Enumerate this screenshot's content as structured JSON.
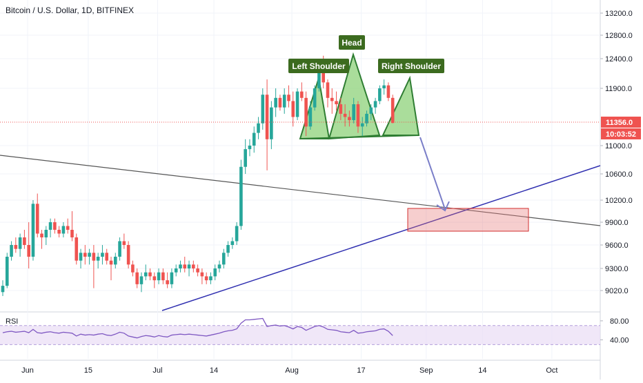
{
  "chart_data": {
    "type": "candlestick",
    "title": "Bitcoin / U.S. Dollar, 1D, BITFINEX",
    "price_axis": {
      "ticks": [
        "13200.0",
        "12800.0",
        "12400.0",
        "11900.0",
        "11000.0",
        "10600.0",
        "10200.0",
        "9900.0",
        "9600.0",
        "9300.0",
        "9020.0"
      ],
      "tick_values": [
        13200,
        12800,
        12400,
        11900,
        11000,
        10600,
        10200,
        9900,
        9600,
        9300,
        9020
      ]
    },
    "time_axis": {
      "ticks": [
        "Jun",
        "15",
        "Jul",
        "14",
        "Aug",
        "17",
        "Sep",
        "14",
        "Oct"
      ],
      "tick_day_index": [
        0,
        14,
        30,
        43,
        61,
        77,
        92,
        105,
        121
      ]
    },
    "last_price_label": "11356.0",
    "countdown_label": "10:03:52",
    "colors": {
      "up": "#26a69a",
      "down": "#ef5350",
      "pattern_fill": "#8ed27a",
      "pattern_stroke": "#2e7d32",
      "label_bg": "#3c6b1f",
      "trend_line": "#2f2fb0",
      "resistance_line": "#555555",
      "target_box": "#e57373",
      "arrow": "#7a7ec8",
      "rsi_line": "#7e57c2",
      "rsi_band": "#e9ddf5",
      "price_label": "#ef5350"
    },
    "annotations": {
      "left_shoulder": "Left Shoulder",
      "head": "Head",
      "right_shoulder": "Right Shoulder"
    },
    "candles_ohlc": [
      [
        9000,
        9150,
        8950,
        9080
      ],
      [
        9080,
        9500,
        9050,
        9450
      ],
      [
        9450,
        9650,
        9400,
        9600
      ],
      [
        9600,
        9700,
        9500,
        9550
      ],
      [
        9550,
        9750,
        9450,
        9700
      ],
      [
        9700,
        9800,
        9550,
        9600
      ],
      [
        9600,
        9900,
        9300,
        9450
      ],
      [
        9450,
        10200,
        9400,
        10150
      ],
      [
        10150,
        10300,
        9700,
        9750
      ],
      [
        9750,
        9800,
        9550,
        9700
      ],
      [
        9700,
        9850,
        9600,
        9800
      ],
      [
        9800,
        9950,
        9700,
        9900
      ],
      [
        9900,
        9950,
        9750,
        9800
      ],
      [
        9800,
        9850,
        9700,
        9750
      ],
      [
        9750,
        9900,
        9700,
        9850
      ],
      [
        9850,
        9950,
        9750,
        9800
      ],
      [
        9800,
        10050,
        9650,
        9700
      ],
      [
        9700,
        9750,
        9350,
        9400
      ],
      [
        9400,
        9550,
        9300,
        9500
      ],
      [
        9500,
        9600,
        9350,
        9450
      ],
      [
        9450,
        9550,
        9350,
        9500
      ],
      [
        9500,
        9600,
        9050,
        9400
      ],
      [
        9400,
        9500,
        9300,
        9450
      ],
      [
        9450,
        9600,
        9350,
        9500
      ],
      [
        9500,
        9550,
        9350,
        9400
      ],
      [
        9400,
        9450,
        9150,
        9350
      ],
      [
        9350,
        9500,
        9300,
        9450
      ],
      [
        9450,
        9700,
        9400,
        9650
      ],
      [
        9650,
        9750,
        9550,
        9600
      ],
      [
        9600,
        9650,
        9300,
        9350
      ],
      [
        9350,
        9400,
        9200,
        9250
      ],
      [
        9250,
        9300,
        9050,
        9100
      ],
      [
        9100,
        9250,
        9000,
        9200
      ],
      [
        9200,
        9350,
        9150,
        9250
      ],
      [
        9250,
        9300,
        9150,
        9200
      ],
      [
        9200,
        9250,
        9050,
        9150
      ],
      [
        9150,
        9300,
        9100,
        9250
      ],
      [
        9250,
        9300,
        9100,
        9150
      ],
      [
        9150,
        9250,
        9050,
        9100
      ],
      [
        9100,
        9300,
        9050,
        9250
      ],
      [
        9250,
        9350,
        9200,
        9300
      ],
      [
        9300,
        9400,
        9250,
        9350
      ],
      [
        9350,
        9450,
        9250,
        9300
      ],
      [
        9300,
        9400,
        9200,
        9350
      ],
      [
        9350,
        9400,
        9250,
        9300
      ],
      [
        9300,
        9350,
        9200,
        9250
      ],
      [
        9250,
        9300,
        9100,
        9200
      ],
      [
        9200,
        9250,
        9100,
        9150
      ],
      [
        9150,
        9250,
        9100,
        9200
      ],
      [
        9200,
        9350,
        9150,
        9300
      ],
      [
        9300,
        9400,
        9250,
        9350
      ],
      [
        9350,
        9550,
        9300,
        9500
      ],
      [
        9500,
        9650,
        9450,
        9600
      ],
      [
        9600,
        9700,
        9550,
        9650
      ],
      [
        9650,
        9900,
        9600,
        9850
      ],
      [
        9850,
        10800,
        9800,
        10700
      ],
      [
        10700,
        11100,
        10600,
        10950
      ],
      [
        10950,
        11100,
        10850,
        11000
      ],
      [
        11000,
        11300,
        10900,
        11200
      ],
      [
        11200,
        11450,
        11100,
        11350
      ],
      [
        11350,
        11900,
        11250,
        11800
      ],
      [
        11800,
        12050,
        10650,
        11100
      ],
      [
        11100,
        11700,
        10950,
        11600
      ],
      [
        11600,
        11900,
        11450,
        11750
      ],
      [
        11750,
        11800,
        11550,
        11600
      ],
      [
        11600,
        11900,
        11500,
        11800
      ],
      [
        11800,
        11950,
        11600,
        11700
      ],
      [
        11700,
        11850,
        11300,
        11450
      ],
      [
        11450,
        11900,
        11400,
        11850
      ],
      [
        11850,
        12000,
        11700,
        11750
      ],
      [
        11750,
        11850,
        11150,
        11300
      ],
      [
        11300,
        11700,
        11250,
        11600
      ],
      [
        11600,
        11950,
        11550,
        11900
      ],
      [
        11900,
        12350,
        11850,
        12200
      ],
      [
        12200,
        12450,
        11900,
        12000
      ],
      [
        12000,
        12050,
        11600,
        11750
      ],
      [
        11750,
        11900,
        11500,
        11700
      ],
      [
        11700,
        11850,
        11550,
        11650
      ],
      [
        11650,
        11750,
        11400,
        11500
      ],
      [
        11500,
        11650,
        11300,
        11450
      ],
      [
        11450,
        11550,
        11300,
        11400
      ],
      [
        11400,
        11750,
        11350,
        11650
      ],
      [
        11650,
        11700,
        11200,
        11300
      ],
      [
        11300,
        11450,
        11150,
        11350
      ],
      [
        11350,
        11550,
        11300,
        11500
      ],
      [
        11500,
        11650,
        11400,
        11600
      ],
      [
        11600,
        11750,
        11500,
        11700
      ],
      [
        11700,
        11950,
        11650,
        11900
      ],
      [
        11900,
        12050,
        11800,
        11950
      ],
      [
        11950,
        12000,
        11700,
        11750
      ],
      [
        11750,
        11800,
        11350,
        11356
      ]
    ],
    "rsi": {
      "label": "RSI",
      "ticks": [
        "80.00",
        "40.00"
      ],
      "tick_values": [
        80,
        40
      ],
      "band": [
        70,
        30
      ],
      "values": [
        55,
        57,
        58,
        56,
        57,
        58,
        55,
        62,
        55,
        54,
        56,
        57,
        55,
        54,
        56,
        55,
        54,
        48,
        52,
        50,
        51,
        50,
        52,
        53,
        50,
        49,
        52,
        56,
        54,
        48,
        46,
        44,
        47,
        49,
        48,
        46,
        49,
        47,
        46,
        50,
        51,
        52,
        51,
        52,
        51,
        50,
        49,
        48,
        50,
        52,
        54,
        57,
        59,
        60,
        63,
        75,
        82,
        82,
        83,
        84,
        85,
        68,
        70,
        71,
        69,
        70,
        67,
        63,
        68,
        66,
        60,
        64,
        68,
        70,
        67,
        62,
        61,
        60,
        57,
        56,
        55,
        60,
        54,
        55,
        57,
        58,
        59,
        62,
        63,
        58,
        49
      ]
    }
  }
}
